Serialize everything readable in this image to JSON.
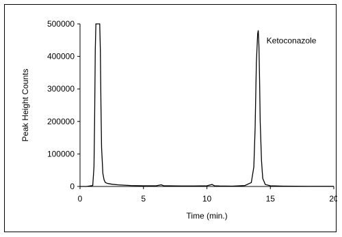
{
  "chart_data": {
    "type": "line",
    "title": "",
    "xlabel": "Time (min.)",
    "ylabel": "Peak Height Counts",
    "xlim": [
      0,
      20
    ],
    "ylim": [
      0,
      500000
    ],
    "x_ticks": [
      0,
      5,
      10,
      15,
      20
    ],
    "y_ticks": [
      0,
      100000,
      200000,
      300000,
      400000,
      500000
    ],
    "x_tick_labels": [
      "0",
      "5",
      "10",
      "15",
      "20"
    ],
    "y_tick_labels": [
      "0",
      "100000",
      "200000",
      "300000",
      "400000",
      "500000"
    ],
    "grid": false,
    "line_color": "#000000",
    "annotations": [
      {
        "text": "Ketoconazole",
        "x": 14.7,
        "y": 440000
      }
    ],
    "series": [
      {
        "x": [
          0.0,
          0.5,
          1.0,
          1.1,
          1.15,
          1.2,
          1.25,
          1.3,
          1.55,
          1.6,
          1.65,
          1.7,
          1.8,
          1.9,
          2.0,
          2.2,
          2.5,
          3.0,
          4.0,
          5.0,
          6.0,
          6.4,
          6.6,
          7.0,
          8.0,
          9.0,
          10.0,
          10.4,
          10.6,
          11.0,
          12.0,
          13.0,
          13.5,
          13.7,
          13.8,
          13.9,
          14.0,
          14.05,
          14.1,
          14.15,
          14.2,
          14.3,
          14.4,
          14.6,
          15.0,
          16.0,
          18.0,
          20.0
        ],
        "y": [
          0,
          0,
          3000,
          60000,
          200000,
          420000,
          500000,
          500000,
          500000,
          420000,
          250000,
          120000,
          40000,
          20000,
          12000,
          9000,
          7000,
          5000,
          3000,
          2000,
          2000,
          5000,
          2000,
          2000,
          1500,
          1500,
          2000,
          6000,
          2000,
          1500,
          1000,
          3000,
          12000,
          60000,
          180000,
          380000,
          470000,
          480000,
          430000,
          330000,
          200000,
          80000,
          25000,
          6000,
          2000,
          1000,
          500,
          500
        ]
      }
    ]
  }
}
